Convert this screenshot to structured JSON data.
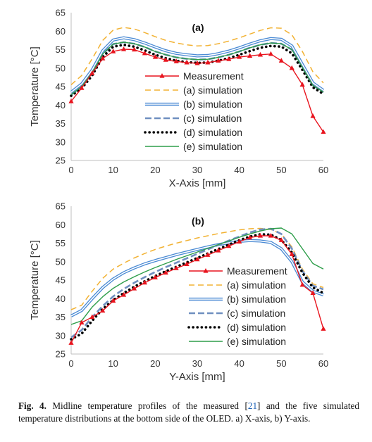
{
  "chart_data": [
    {
      "type": "line",
      "panel_label": "(a)",
      "xlabel": "X-Axis [mm]",
      "ylabel": "Temperature [°C]",
      "xlim": [
        0,
        60
      ],
      "ylim": [
        25,
        65
      ],
      "x_ticks": [
        "0",
        "10",
        "20",
        "30",
        "40",
        "50",
        "60"
      ],
      "y_ticks": [
        "25",
        "30",
        "35",
        "40",
        "45",
        "50",
        "55",
        "60",
        "65"
      ],
      "legend_position": "center-left",
      "series": [
        {
          "name": "Measurement",
          "color": "#e8141e",
          "style": "line-triangle",
          "x": [
            0,
            2.5,
            5,
            7.5,
            10,
            12.5,
            15,
            17.5,
            20,
            22.5,
            25,
            27.5,
            30,
            32.5,
            35,
            37.5,
            40,
            42.5,
            45,
            47.5,
            50,
            52.5,
            55,
            57.5,
            60
          ],
          "y": [
            41,
            44.6,
            48.6,
            52.6,
            54.5,
            55.1,
            55,
            54,
            53,
            52.2,
            51.8,
            51.5,
            51.3,
            51.5,
            52,
            52.4,
            53,
            53.3,
            53.6,
            53.8,
            52,
            50,
            45.5,
            37,
            32.7
          ]
        },
        {
          "name": "(a) simulation",
          "color": "#f2b233",
          "style": "dashed",
          "x": [
            0,
            2.5,
            5,
            7.5,
            10,
            12.5,
            15,
            17.5,
            20,
            22.5,
            25,
            27.5,
            30,
            32.5,
            35,
            37.5,
            40,
            42.5,
            45,
            47.5,
            50,
            52.5,
            55,
            57.5,
            60
          ],
          "y": [
            45.5,
            48,
            52.5,
            57.5,
            60.3,
            61,
            60.6,
            59.6,
            58.5,
            57.5,
            56.8,
            56.3,
            56,
            56.1,
            56.6,
            57.3,
            58.2,
            59.2,
            60.2,
            60.9,
            60.8,
            59,
            54.5,
            49,
            46
          ]
        },
        {
          "name": "(b) simulation",
          "color": "#4a8ad4",
          "style": "double",
          "x": [
            0,
            2.5,
            5,
            7.5,
            10,
            12.5,
            15,
            17.5,
            20,
            22.5,
            25,
            27.5,
            30,
            32.5,
            35,
            37.5,
            40,
            42.5,
            45,
            47.5,
            50,
            52.5,
            55,
            57.5,
            60
          ],
          "y": [
            43.5,
            45.7,
            49.5,
            54.7,
            57.6,
            58.2,
            57.7,
            56.8,
            55.7,
            54.7,
            54,
            53.6,
            53.3,
            53.4,
            53.9,
            54.6,
            55.5,
            56.5,
            57.4,
            58,
            57.8,
            56,
            51,
            46,
            44
          ]
        },
        {
          "name": "(c) simulation",
          "color": "#6f8fc0",
          "style": "dashed-thick",
          "x": [
            0,
            2.5,
            5,
            7.5,
            10,
            12.5,
            15,
            17.5,
            20,
            22.5,
            25,
            27.5,
            30,
            32.5,
            35,
            37.5,
            40,
            42.5,
            45,
            47.5,
            50,
            52.5,
            55,
            57.5,
            60
          ],
          "y": [
            42.8,
            45,
            48.8,
            53.8,
            56.5,
            57,
            56.6,
            55.7,
            54.5,
            53.6,
            52.9,
            52.5,
            52.3,
            52.4,
            52.9,
            53.6,
            54.5,
            55.5,
            56.3,
            56.8,
            56.6,
            55,
            50.2,
            45.3,
            43.5
          ]
        },
        {
          "name": "(d) simulation",
          "color": "#000000",
          "style": "dotted",
          "x": [
            0,
            2.5,
            5,
            7.5,
            10,
            12.5,
            15,
            17.5,
            20,
            22.5,
            25,
            27.5,
            30,
            32.5,
            35,
            37.5,
            40,
            42.5,
            45,
            47.5,
            50,
            52.5,
            55,
            57.5,
            60
          ],
          "y": [
            42.5,
            44.5,
            48,
            53,
            55.8,
            56.3,
            55.8,
            54.8,
            53.6,
            52.7,
            52,
            51.6,
            51.4,
            51.5,
            52,
            52.7,
            53.6,
            54.6,
            55.5,
            56,
            55.8,
            54,
            49.5,
            44.8,
            43
          ]
        },
        {
          "name": "(e) simulation",
          "color": "#2e9e4a",
          "style": "solid",
          "x": [
            0,
            2.5,
            5,
            7.5,
            10,
            12.5,
            15,
            17.5,
            20,
            22.5,
            25,
            27.5,
            30,
            32.5,
            35,
            37.5,
            40,
            42.5,
            45,
            47.5,
            50,
            52.5,
            55,
            57.5,
            60
          ],
          "y": [
            42.8,
            45,
            48.8,
            53.8,
            56.5,
            57,
            56.6,
            55.7,
            54.5,
            53.6,
            52.9,
            52.5,
            52.3,
            52.4,
            52.9,
            53.6,
            54.5,
            55.5,
            56.3,
            56.8,
            56.6,
            55,
            50.2,
            45.3,
            43.5
          ]
        }
      ]
    },
    {
      "type": "line",
      "panel_label": "(b)",
      "xlabel": "Y-Axis [mm]",
      "ylabel": "Temperature [°C]",
      "xlim": [
        0,
        60
      ],
      "ylim": [
        25,
        65
      ],
      "x_ticks": [
        "0",
        "10",
        "20",
        "30",
        "40",
        "50",
        "60"
      ],
      "y_ticks": [
        "25",
        "30",
        "35",
        "40",
        "45",
        "50",
        "55",
        "60",
        "65"
      ],
      "legend_position": "bottom-right",
      "series": [
        {
          "name": "Measurement",
          "color": "#e8141e",
          "style": "line-triangle",
          "x": [
            0,
            2.5,
            5,
            7.5,
            10,
            12.5,
            15,
            17.5,
            20,
            22.5,
            25,
            27.5,
            30,
            32.5,
            35,
            37.5,
            40,
            42.5,
            45,
            47.5,
            50,
            52.5,
            55,
            57.5,
            60
          ],
          "y": [
            28,
            33.5,
            35,
            36.7,
            39.4,
            41,
            42.7,
            44.3,
            45.7,
            47,
            48.2,
            49.3,
            50.6,
            51.8,
            53,
            54.2,
            55.4,
            56.5,
            57,
            57,
            55.8,
            52,
            43.7,
            41.5,
            31.8
          ]
        },
        {
          "name": "(a) simulation",
          "color": "#f2b233",
          "style": "dashed",
          "x": [
            0,
            2.5,
            5,
            7.5,
            10,
            12.5,
            15,
            17.5,
            20,
            22.5,
            25,
            27.5,
            30,
            32.5,
            35,
            37.5,
            40,
            42.5,
            45,
            47.5,
            50,
            52.5,
            55,
            57.5,
            60
          ],
          "y": [
            37,
            38.2,
            42,
            45.5,
            48,
            49.6,
            51,
            52.2,
            53.3,
            54.2,
            55,
            55.7,
            56.4,
            57,
            57.6,
            58.1,
            58.6,
            58.9,
            59,
            58.7,
            57.5,
            54,
            48,
            44,
            43
          ]
        },
        {
          "name": "(b) simulation",
          "color": "#4a8ad4",
          "style": "double",
          "x": [
            0,
            2.5,
            5,
            7.5,
            10,
            12.5,
            15,
            17.5,
            20,
            22.5,
            25,
            27.5,
            30,
            32.5,
            35,
            37.5,
            40,
            42.5,
            45,
            47.5,
            50,
            52.5,
            55,
            57.5,
            60
          ],
          "y": [
            35.3,
            36.8,
            40,
            43,
            45.3,
            47,
            48.3,
            49.4,
            50.3,
            51.1,
            51.9,
            52.6,
            53.3,
            54,
            54.6,
            55.1,
            55.5,
            55.7,
            55.6,
            55.2,
            53.5,
            50,
            44.5,
            42,
            41
          ]
        },
        {
          "name": "(c) simulation",
          "color": "#6f8fc0",
          "style": "dashed-thick",
          "x": [
            0,
            2.5,
            5,
            7.5,
            10,
            12.5,
            15,
            17.5,
            20,
            22.5,
            25,
            27.5,
            30,
            32.5,
            35,
            37.5,
            40,
            42.5,
            45,
            47.5,
            50,
            52.5,
            55,
            57.5,
            60
          ],
          "y": [
            29.5,
            31.5,
            35,
            38,
            40.6,
            42.6,
            44.3,
            45.8,
            47.2,
            48.5,
            49.7,
            50.9,
            52.1,
            53.3,
            54.5,
            55.7,
            56.8,
            57.9,
            58.7,
            58.9,
            57.5,
            53.5,
            47.5,
            43.5,
            42.5
          ]
        },
        {
          "name": "(d) simulation",
          "color": "#000000",
          "style": "dotted",
          "x": [
            0,
            2.5,
            5,
            7.5,
            10,
            12.5,
            15,
            17.5,
            20,
            22.5,
            25,
            27.5,
            30,
            32.5,
            35,
            37.5,
            40,
            42.5,
            45,
            47.5,
            50,
            52.5,
            55,
            57.5,
            60
          ],
          "y": [
            29,
            30.5,
            34,
            37.2,
            39.6,
            41.5,
            43.2,
            44.7,
            46.1,
            47.4,
            48.6,
            49.8,
            51,
            52.2,
            53.4,
            54.6,
            55.8,
            56.8,
            57.4,
            57.3,
            55.9,
            52.5,
            47,
            43,
            41.5
          ]
        },
        {
          "name": "(e) simulation",
          "color": "#2e9e4a",
          "style": "solid",
          "x": [
            0,
            2.5,
            5,
            7.5,
            10,
            12.5,
            15,
            17.5,
            20,
            22.5,
            25,
            27.5,
            30,
            32.5,
            35,
            37.5,
            40,
            42.5,
            45,
            47.5,
            50,
            52.5,
            55,
            57.5,
            60
          ],
          "y": [
            33,
            34,
            37.7,
            40.5,
            42.8,
            44.5,
            45.9,
            47.2,
            48.4,
            49.5,
            50.6,
            51.6,
            52.6,
            53.6,
            54.6,
            55.6,
            56.6,
            57.5,
            58.3,
            58.9,
            59.1,
            57.5,
            53.5,
            49.5,
            48
          ]
        }
      ]
    }
  ],
  "caption": {
    "label": "Fig. 4.",
    "text_before_ref": " Midline temperature profiles of the measured [",
    "ref": "21",
    "text_after_ref": "] and the five simulated temperature distributions at the bottom side of the OLED. a) X-axis, b) Y-axis."
  }
}
